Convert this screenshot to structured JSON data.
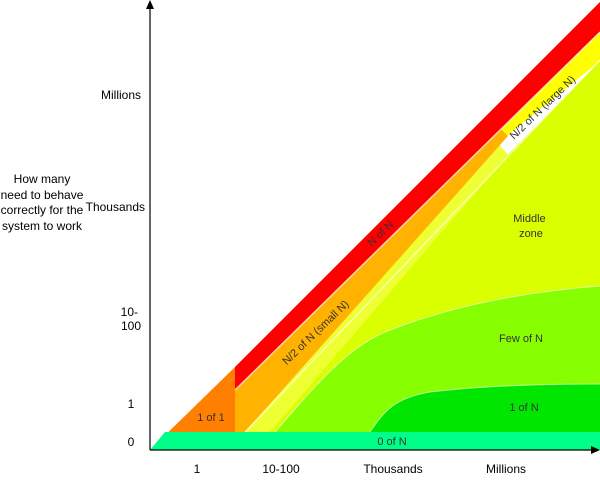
{
  "y_axis": {
    "title": "How many need to behave correctly for the system to work",
    "ticks": [
      "Millions",
      "Thousands",
      "10-\n100",
      "1",
      "0"
    ]
  },
  "x_axis": {
    "ticks": [
      "1",
      "10-100",
      "Thousands",
      "Millions"
    ]
  },
  "zones": [
    {
      "label": "N of N",
      "color": "#ff0000"
    },
    {
      "label": "N/2 of N (large N)",
      "color": "#ffff00"
    },
    {
      "label": "N/2 of N (small N)",
      "color": "#ffb300"
    },
    {
      "label": "Middle zone",
      "color": "#d9ff00"
    },
    {
      "label": "Few of N",
      "color": "#88ff00"
    },
    {
      "label": "1 of N",
      "color": "#00e600"
    },
    {
      "label": "1 of 1",
      "color": "#ff8000"
    },
    {
      "label": "0 of N",
      "color": "#00ff88"
    }
  ]
}
